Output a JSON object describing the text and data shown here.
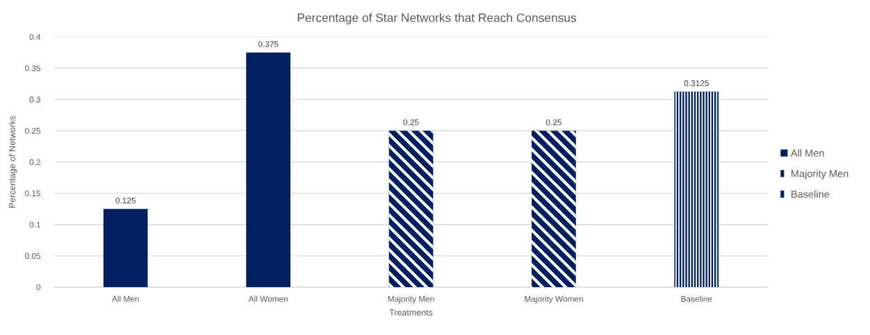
{
  "chart_data": {
    "type": "bar",
    "title": "Percentage of Star Networks that Reach Consensus",
    "xlabel": "Treatments",
    "ylabel": "Percentage of Networks",
    "categories": [
      "All Men",
      "All Women",
      "Majority Men",
      "Majority Women",
      "Baseline"
    ],
    "series": [
      {
        "name": "All Men",
        "color": "#002060",
        "values": [
          0.125,
          0.375,
          null,
          null,
          null
        ]
      },
      {
        "name": "Majority Men",
        "color": "#002060",
        "values": [
          null,
          null,
          0.25,
          0.25,
          null
        ]
      },
      {
        "name": "Baseline",
        "color": "#002060",
        "values": [
          null,
          null,
          null,
          null,
          0.3125
        ]
      }
    ],
    "ylim": [
      0,
      0.4
    ],
    "yticks": [
      0,
      0.05,
      0.1,
      0.15,
      0.2,
      0.25,
      0.3,
      0.35,
      0.4
    ],
    "grid": "y",
    "legend": "right",
    "data_labels": true
  }
}
